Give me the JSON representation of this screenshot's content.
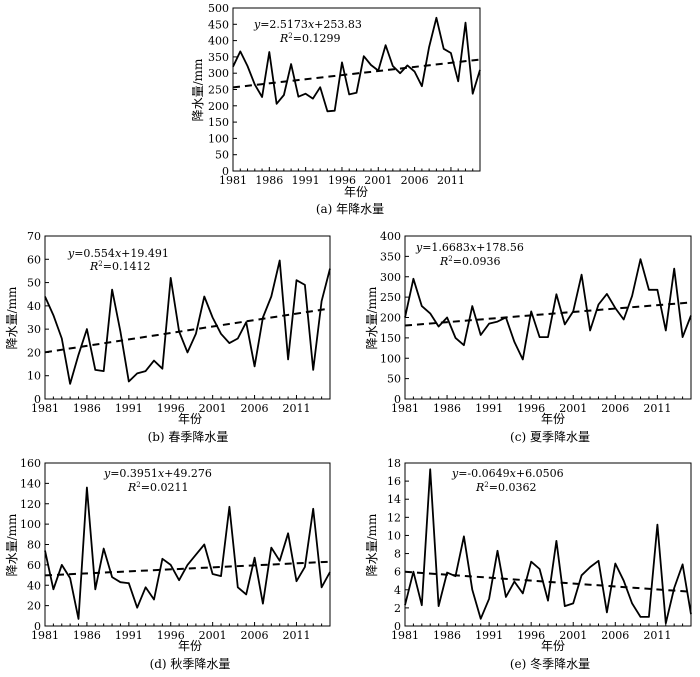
{
  "chart_data": [
    {
      "type": "line",
      "caption": "(a) 年降水量",
      "xlabel": "年份",
      "ylabel": "降水量/mm",
      "xlim": [
        1981,
        2015
      ],
      "ylim": [
        0,
        500
      ],
      "xticks": [
        "1981",
        "1986",
        "1991",
        "1996",
        "2001",
        "2006",
        "2011"
      ],
      "yticks": [
        "0",
        "50",
        "100",
        "150",
        "200",
        "250",
        "300",
        "350",
        "400",
        "450",
        "500"
      ],
      "equation": "y=2.5173x+253.83",
      "r2": "R²=0.1299",
      "trend": {
        "slope": 2.5173,
        "intercept": 253.83
      },
      "x": [
        1981,
        1982,
        1983,
        1984,
        1985,
        1986,
        1987,
        1988,
        1989,
        1990,
        1991,
        1992,
        1993,
        1994,
        1995,
        1996,
        1997,
        1998,
        1999,
        2000,
        2001,
        2002,
        2003,
        2004,
        2005,
        2006,
        2007,
        2008,
        2009,
        2010,
        2011,
        2012,
        2013,
        2014,
        2015
      ],
      "values": [
        320,
        367,
        322,
        265,
        227,
        365,
        206,
        233,
        328,
        228,
        237,
        222,
        257,
        183,
        185,
        333,
        235,
        240,
        352,
        325,
        308,
        386,
        322,
        300,
        324,
        305,
        260,
        380,
        470,
        375,
        362,
        275,
        455,
        237,
        310
      ]
    },
    {
      "type": "line",
      "caption": "(b) 春季降水量",
      "xlabel": "年份",
      "ylabel": "降水量/mm",
      "xlim": [
        1981,
        2015
      ],
      "ylim": [
        0,
        70
      ],
      "xticks": [
        "1981",
        "1986",
        "1991",
        "1996",
        "2001",
        "2006",
        "2011"
      ],
      "yticks": [
        "0",
        "10",
        "20",
        "30",
        "40",
        "50",
        "60",
        "70"
      ],
      "equation": "y=0.554x+19.491",
      "r2": "R²=0.1412",
      "trend": {
        "slope": 0.554,
        "intercept": 19.491
      },
      "x": [
        1981,
        1982,
        1983,
        1984,
        1985,
        1986,
        1987,
        1988,
        1989,
        1990,
        1991,
        1992,
        1993,
        1994,
        1995,
        1996,
        1997,
        1998,
        1999,
        2000,
        2001,
        2002,
        2003,
        2004,
        2005,
        2006,
        2007,
        2008,
        2009,
        2010,
        2011,
        2012,
        2013,
        2014,
        2015
      ],
      "values": [
        44,
        36,
        26,
        6.5,
        19,
        30,
        12.5,
        12,
        47,
        29,
        7.5,
        11,
        12,
        16.5,
        13,
        52,
        29,
        20,
        28,
        44,
        35,
        28,
        24,
        26,
        33,
        14,
        35,
        44,
        59.5,
        17,
        51,
        49,
        12.5,
        42,
        56
      ]
    },
    {
      "type": "line",
      "caption": "(c) 夏季降水量",
      "xlabel": "年份",
      "ylabel": "降水量/mm",
      "xlim": [
        1981,
        2015
      ],
      "ylim": [
        0,
        400
      ],
      "xticks": [
        "1981",
        "1986",
        "1991",
        "1996",
        "2001",
        "2006",
        "2011"
      ],
      "yticks": [
        "0",
        "50",
        "100",
        "150",
        "200",
        "250",
        "300",
        "350",
        "400"
      ],
      "equation": "y=1.6683x+178.56",
      "r2": "R²=0.0936",
      "trend": {
        "slope": 1.6683,
        "intercept": 178.56
      },
      "x": [
        1981,
        1982,
        1983,
        1984,
        1985,
        1986,
        1987,
        1988,
        1989,
        1990,
        1991,
        1992,
        1993,
        1994,
        1995,
        1996,
        1997,
        1998,
        1999,
        2000,
        2001,
        2002,
        2003,
        2004,
        2005,
        2006,
        2007,
        2008,
        2009,
        2010,
        2011,
        2012,
        2013,
        2014,
        2015
      ],
      "values": [
        200,
        295,
        228,
        210,
        178,
        200,
        150,
        132,
        228,
        157,
        185,
        190,
        200,
        140,
        97,
        215,
        152,
        152,
        257,
        183,
        215,
        305,
        168,
        232,
        258,
        223,
        195,
        253,
        343,
        268,
        268,
        168,
        320,
        152,
        205
      ]
    },
    {
      "type": "line",
      "caption": "(d) 秋季降水量",
      "xlabel": "年份",
      "ylabel": "降水量/mm",
      "xlim": [
        1981,
        2015
      ],
      "ylim": [
        0,
        160
      ],
      "xticks": [
        "1981",
        "1986",
        "1991",
        "1996",
        "2001",
        "2006",
        "2011"
      ],
      "yticks": [
        "0",
        "20",
        "40",
        "60",
        "80",
        "100",
        "120",
        "140",
        "160"
      ],
      "equation": "y=0.3951x+49.276",
      "r2": "R²=0.0211",
      "trend": {
        "slope": 0.3951,
        "intercept": 49.276
      },
      "x": [
        1981,
        1982,
        1983,
        1984,
        1985,
        1986,
        1987,
        1988,
        1989,
        1990,
        1991,
        1992,
        1993,
        1994,
        1995,
        1996,
        1997,
        1998,
        1999,
        2000,
        2001,
        2002,
        2003,
        2004,
        2005,
        2006,
        2007,
        2008,
        2009,
        2010,
        2011,
        2012,
        2013,
        2014,
        2015
      ],
      "values": [
        74,
        36,
        60,
        47,
        7,
        136,
        36,
        76,
        48,
        43,
        42,
        18,
        38,
        26,
        66,
        60,
        45,
        60,
        70,
        80,
        51,
        49,
        117,
        38,
        31,
        67,
        22,
        77,
        64,
        91,
        44,
        58,
        115,
        38,
        53
      ]
    },
    {
      "type": "line",
      "caption": "(e) 冬季降水量",
      "xlabel": "年份",
      "ylabel": "降水量/mm",
      "xlim": [
        1981,
        2015
      ],
      "ylim": [
        0,
        18
      ],
      "xticks": [
        "1981",
        "1986",
        "1991",
        "1996",
        "2001",
        "2006",
        "2011"
      ],
      "yticks": [
        "0",
        "2",
        "4",
        "6",
        "8",
        "10",
        "12",
        "14",
        "16",
        "18"
      ],
      "equation": "y=-0.0649x+6.0506",
      "r2": "R²=0.0362",
      "trend": {
        "slope": -0.0649,
        "intercept": 6.0506
      },
      "x": [
        1981,
        1982,
        1983,
        1984,
        1985,
        1986,
        1987,
        1988,
        1989,
        1990,
        1991,
        1992,
        1993,
        1994,
        1995,
        1996,
        1997,
        1998,
        1999,
        2000,
        2001,
        2002,
        2003,
        2004,
        2005,
        2006,
        2007,
        2008,
        2009,
        2010,
        2011,
        2012,
        2013,
        2014,
        2015
      ],
      "values": [
        2.3,
        6,
        2.3,
        17.3,
        2.2,
        5.9,
        5.5,
        9.9,
        4,
        0.8,
        3,
        8.3,
        3.2,
        4.9,
        3.6,
        7.1,
        6.3,
        2.8,
        9.4,
        2.2,
        2.5,
        5.6,
        6.5,
        7.2,
        1.5,
        6.9,
        5,
        2.5,
        1,
        1,
        11.2,
        0.3,
        4.2,
        6.8,
        1.3
      ]
    }
  ]
}
